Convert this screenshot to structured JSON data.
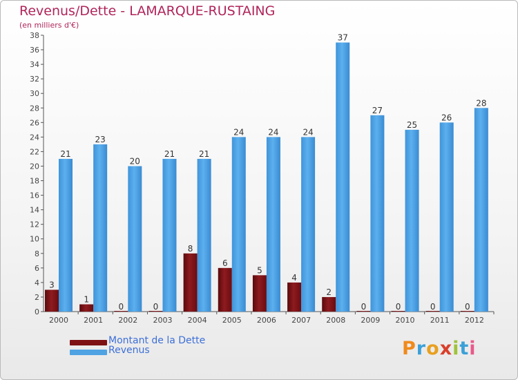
{
  "title": "Revenus/Dette - LAMARQUE-RUSTAING",
  "subtitle": "(en milliers d'€)",
  "legend": [
    {
      "label": "Montant de la Dette",
      "color": "#7d1114"
    },
    {
      "label": "Revenus",
      "color": "#4fa3e3"
    }
  ],
  "logo": {
    "text": "Proxiti",
    "colors": [
      "#f08a1c",
      "#3ca0d8",
      "#e8a020",
      "#d93f2a",
      "#9ec33a",
      "#3ca0d8",
      "#e85a8a"
    ]
  },
  "colors": {
    "title": "#b0245a",
    "dette": "#7d1114",
    "revenus": "#4fa3e3",
    "axis": "#444444"
  },
  "chart_data": {
    "type": "bar",
    "title": "Revenus/Dette - LAMARQUE-RUSTAING",
    "ylabel": "(en milliers d'€)",
    "xlabel": "",
    "ylim": [
      0,
      38
    ],
    "yticks": [
      0,
      2,
      4,
      6,
      8,
      10,
      12,
      14,
      16,
      18,
      20,
      22,
      24,
      26,
      28,
      30,
      32,
      34,
      36,
      38
    ],
    "grid": false,
    "legend_position": "bottom-left",
    "categories": [
      "2000",
      "2001",
      "2002",
      "2003",
      "2004",
      "2005",
      "2006",
      "2007",
      "2008",
      "2009",
      "2010",
      "2011",
      "2012"
    ],
    "series": [
      {
        "name": "Montant de la Dette",
        "values": [
          3,
          1,
          0,
          0,
          8,
          6,
          5,
          4,
          2,
          0,
          0,
          0,
          0
        ]
      },
      {
        "name": "Revenus",
        "values": [
          21,
          23,
          20,
          21,
          21,
          24,
          24,
          24,
          37,
          27,
          25,
          26,
          28
        ]
      }
    ]
  }
}
